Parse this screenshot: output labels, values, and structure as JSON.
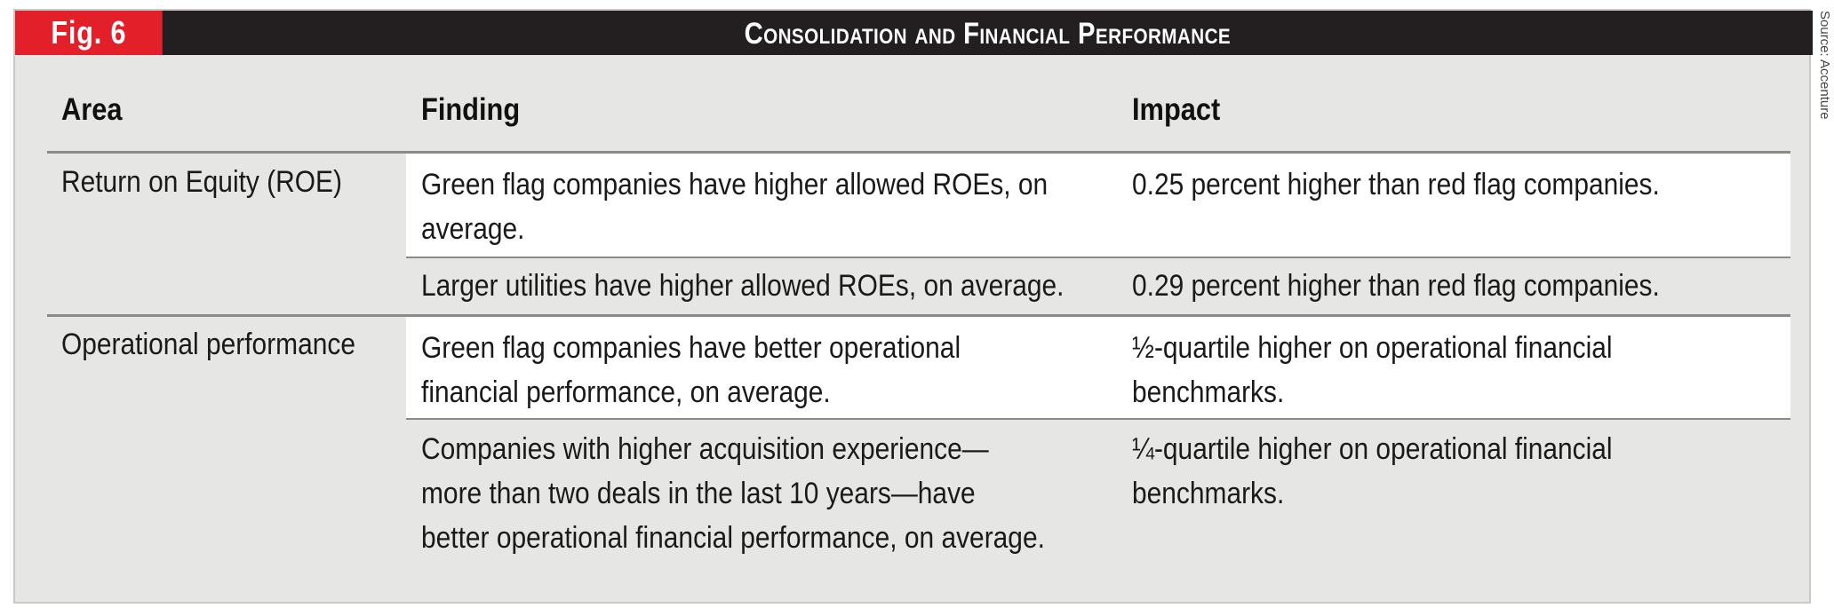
{
  "figure": {
    "tag": "Fig. 6",
    "title": "Consolidation and Financial Performance",
    "source": "Source: Accenture"
  },
  "table": {
    "headers": {
      "area": "Area",
      "finding": "Finding",
      "impact": "Impact"
    },
    "groups": [
      {
        "area": "Return on Equity (ROE)",
        "rows": [
          {
            "finding_lines": [
              "Green flag companies have higher allowed ROEs, on",
              "average."
            ],
            "impact_lines": [
              "0.25 percent higher than red flag companies."
            ]
          },
          {
            "finding_lines": [
              "Larger utilities have higher allowed ROEs, on average."
            ],
            "impact_lines": [
              "0.29 percent higher than red flag companies."
            ]
          }
        ]
      },
      {
        "area": "Operational performance",
        "rows": [
          {
            "finding_lines": [
              "Green flag companies have better operational",
              "financial performance, on average."
            ],
            "impact_lines": [
              "½-quartile higher on operational financial",
              "benchmarks."
            ]
          },
          {
            "finding_lines": [
              "Companies with higher acquisition experience—",
              "more than two deals in the last 10 years—have",
              "better operational financial performance, on average."
            ],
            "impact_lines": [
              "¼-quartile higher on operational financial",
              "benchmarks."
            ]
          }
        ]
      }
    ]
  }
}
